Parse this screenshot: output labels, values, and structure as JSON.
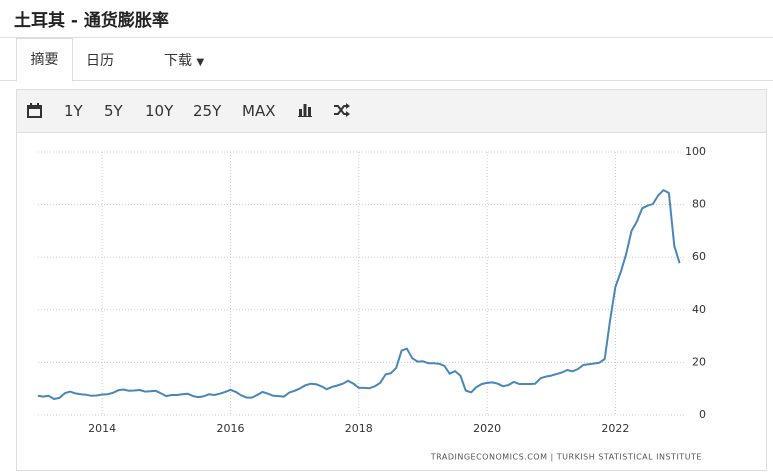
{
  "header": {
    "title": "土耳其 - 通货膨胀率"
  },
  "tabs": [
    "摘要",
    "日历",
    "下载"
  ],
  "toolbar": [
    "1Y",
    "5Y",
    "10Y",
    "25Y",
    "MAX"
  ],
  "chart_data": {
    "type": "line",
    "color": "#4a86b8",
    "grid": true,
    "source": "TRADINGECONOMICS.COM  |  TURKISH STATISTICAL INSTITUTE",
    "xlim": [
      2013,
      2023.1
    ],
    "xticks": [
      2014,
      2016,
      2018,
      2020,
      2022
    ],
    "ylim": [
      0,
      100
    ],
    "yticks": [
      0,
      20,
      40,
      60,
      80,
      100
    ],
    "x": [
      2013,
      2013.083,
      2013.167,
      2013.25,
      2013.333,
      2013.417,
      2013.5,
      2013.583,
      2013.667,
      2013.75,
      2013.833,
      2013.917,
      2014,
      2014.083,
      2014.167,
      2014.25,
      2014.333,
      2014.417,
      2014.5,
      2014.583,
      2014.667,
      2014.75,
      2014.833,
      2014.917,
      2015,
      2015.083,
      2015.167,
      2015.25,
      2015.333,
      2015.417,
      2015.5,
      2015.583,
      2015.667,
      2015.75,
      2015.833,
      2015.917,
      2016,
      2016.083,
      2016.167,
      2016.25,
      2016.333,
      2016.417,
      2016.5,
      2016.583,
      2016.667,
      2016.75,
      2016.833,
      2016.917,
      2017,
      2017.083,
      2017.167,
      2017.25,
      2017.333,
      2017.417,
      2017.5,
      2017.583,
      2017.667,
      2017.75,
      2017.833,
      2017.917,
      2018,
      2018.083,
      2018.167,
      2018.25,
      2018.333,
      2018.417,
      2018.5,
      2018.583,
      2018.667,
      2018.75,
      2018.833,
      2018.917,
      2019,
      2019.083,
      2019.167,
      2019.25,
      2019.333,
      2019.417,
      2019.5,
      2019.583,
      2019.667,
      2019.75,
      2019.833,
      2019.917,
      2020,
      2020.083,
      2020.167,
      2020.25,
      2020.333,
      2020.417,
      2020.5,
      2020.583,
      2020.667,
      2020.75,
      2020.833,
      2020.917,
      2021,
      2021.083,
      2021.167,
      2021.25,
      2021.333,
      2021.417,
      2021.5,
      2021.583,
      2021.667,
      2021.75,
      2021.833,
      2021.917,
      2022,
      2022.083,
      2022.167,
      2022.25,
      2022.333,
      2022.417,
      2022.5,
      2022.583,
      2022.667,
      2022.75,
      2022.833,
      2022.917,
      2023
    ],
    "values": [
      7.3,
      7.0,
      7.3,
      6.1,
      6.5,
      8.3,
      8.9,
      8.2,
      7.9,
      7.7,
      7.3,
      7.4,
      7.8,
      7.9,
      8.4,
      9.4,
      9.7,
      9.2,
      9.3,
      9.5,
      8.9,
      9.0,
      9.2,
      8.2,
      7.2,
      7.6,
      7.6,
      7.9,
      8.1,
      7.2,
      6.8,
      7.1,
      7.9,
      7.6,
      8.1,
      8.8,
      9.6,
      8.8,
      7.5,
      6.6,
      6.6,
      7.6,
      8.8,
      8.1,
      7.3,
      7.2,
      7.0,
      8.5,
      9.2,
      10.1,
      11.3,
      11.9,
      11.7,
      10.9,
      9.8,
      10.7,
      11.2,
      11.9,
      13.0,
      11.9,
      10.3,
      10.3,
      10.2,
      10.9,
      12.2,
      15.4,
      15.9,
      17.9,
      24.5,
      25.2,
      21.6,
      20.3,
      20.4,
      19.7,
      19.7,
      19.5,
      18.7,
      15.7,
      16.7,
      15.0,
      9.3,
      8.6,
      10.6,
      11.8,
      12.2,
      12.4,
      11.9,
      10.9,
      11.4,
      12.6,
      11.8,
      11.8,
      11.8,
      11.9,
      14.0,
      14.6,
      15.0,
      15.6,
      16.2,
      17.1,
      16.6,
      17.5,
      19.0,
      19.3,
      19.6,
      19.9,
      21.3,
      36.1,
      48.7,
      54.4,
      61.1,
      70.0,
      73.5,
      78.6,
      79.6,
      80.2,
      83.5,
      85.5,
      84.4,
      64.3,
      57.7
    ]
  }
}
